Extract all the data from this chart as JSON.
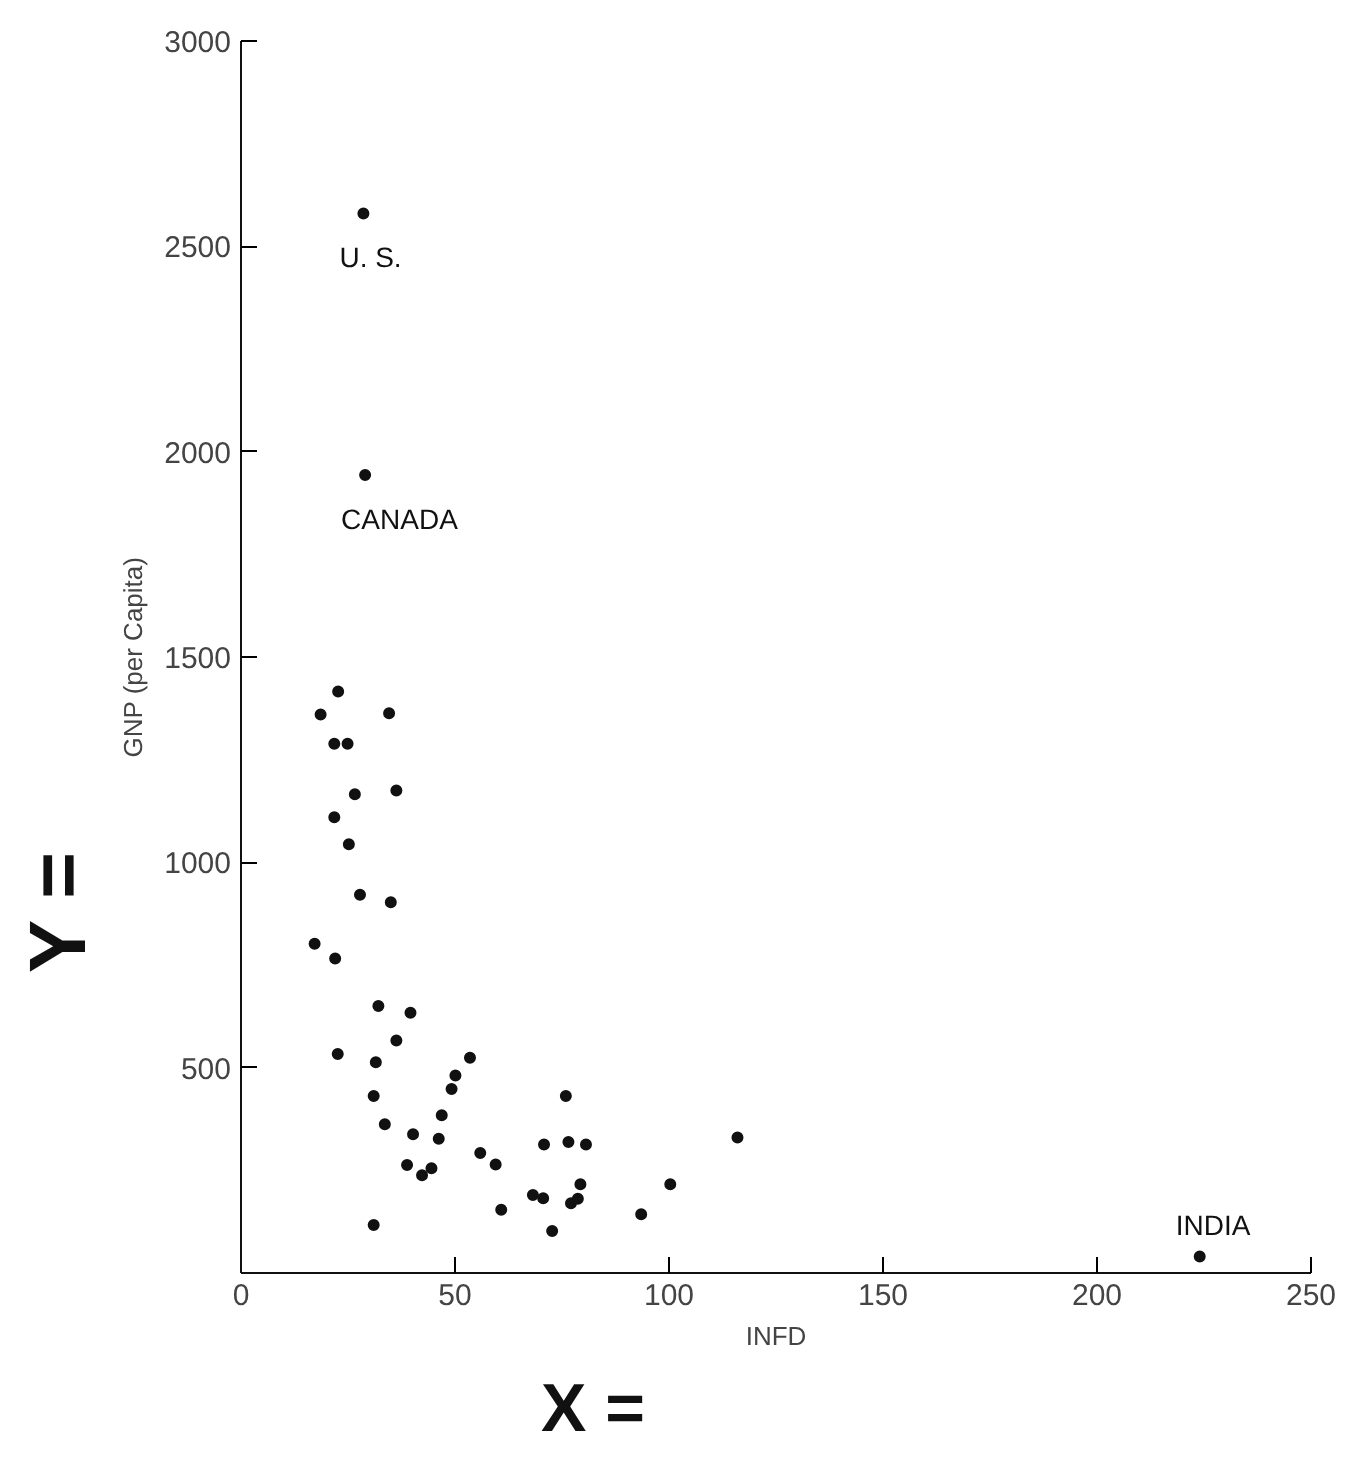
{
  "chart_data": {
    "type": "scatter",
    "xlabel": "INFD",
    "ylabel": "GNP (per Capita)",
    "xlim": [
      0,
      250
    ],
    "ylim": [
      0,
      3000
    ],
    "xticks": [
      0,
      50,
      100,
      150,
      200,
      250
    ],
    "yticks": [
      500,
      1000,
      1500,
      2000,
      2500,
      3000
    ],
    "grid": false,
    "marker": "circle",
    "series": [
      {
        "color": "#111111",
        "x": [
          28.6,
          29,
          224,
          22.7,
          18.6,
          34.6,
          21.8,
          24.9,
          26.6,
          36.3,
          21.8,
          25.2,
          27.8,
          35,
          17.2,
          22,
          32.1,
          39.6,
          36.3,
          22.6,
          31.5,
          53.5,
          50.1,
          49.2,
          31,
          46.9,
          33.6,
          40.2,
          46.2,
          55.9,
          59.5,
          38.8,
          44.5,
          42.3,
          60.8,
          31,
          75.9,
          70.8,
          76.5,
          80.6,
          100.3,
          79.3,
          68.2,
          70.6,
          77.1,
          78.7,
          93.5,
          72.7,
          116
        ],
        "values": [
          2580,
          1943,
          40,
          1416,
          1360,
          1363,
          1289,
          1289,
          1166,
          1175,
          1110,
          1044,
          921,
          903,
          802,
          766,
          650,
          634,
          566,
          533,
          513,
          524,
          481,
          448,
          431,
          384,
          362,
          338,
          327,
          292,
          264,
          263,
          255,
          238,
          154,
          117,
          431,
          313,
          319,
          313,
          216,
          216,
          190,
          182,
          170,
          181,
          143,
          102,
          330
        ]
      }
    ],
    "annotations": [
      {
        "text": "U. S.",
        "x": 28.6,
        "y": 2580
      },
      {
        "text": "CANADA",
        "x": 29,
        "y": 1943
      },
      {
        "text": "INDIA",
        "x": 224,
        "y": 40
      },
      "Y =",
      "X ="
    ]
  }
}
